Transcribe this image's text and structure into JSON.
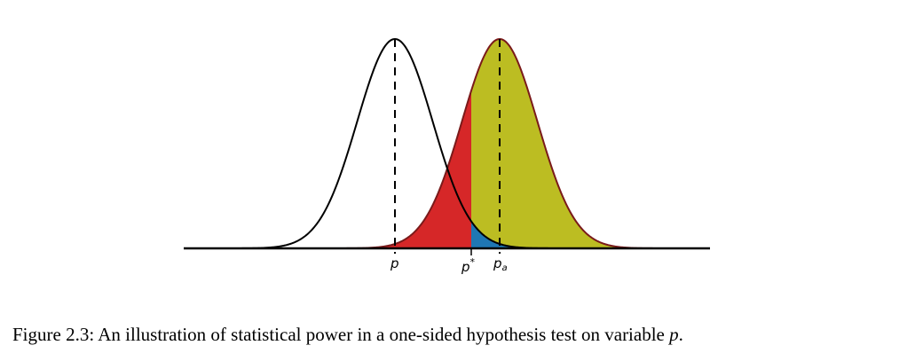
{
  "figure": {
    "labels": {
      "null_mean": "p",
      "critical": "p",
      "critical_sup": "*",
      "alt_mean": "p",
      "alt_sub": "a"
    },
    "caption": {
      "text": "Figure 2.3: An illustration of statistical power in a one-sided hypothesis test on variable ",
      "variable": "p",
      "end": "."
    }
  }
}
